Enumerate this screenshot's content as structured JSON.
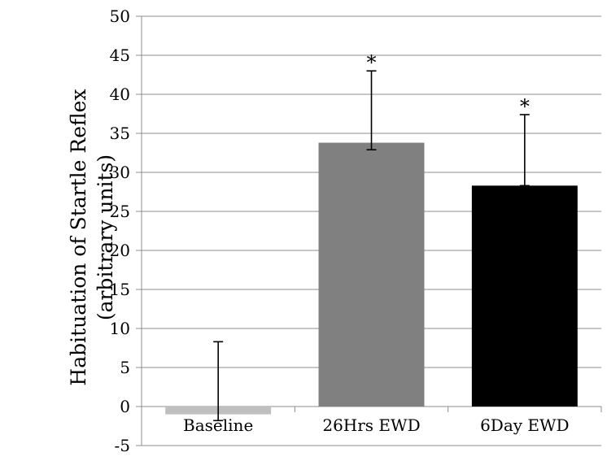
{
  "chart_data": {
    "type": "bar",
    "title": "",
    "ylabel_line1": "Habituation of Startle Reflex",
    "ylabel_line2": "(arbitrary units)",
    "xlabel": "",
    "categories": [
      "Baseline",
      "26Hrs EWD",
      "6Day EWD"
    ],
    "values": [
      -1.0,
      33.8,
      28.3
    ],
    "error_up": [
      9.3,
      9.2,
      9.1
    ],
    "error_down": [
      0.8,
      0.9,
      0.0
    ],
    "significance": [
      "",
      "*",
      "*"
    ],
    "bar_colors": [
      "#bfbfbf",
      "#808080",
      "#000000"
    ],
    "ylim": [
      -5,
      50
    ],
    "yticks": [
      -5,
      0,
      5,
      10,
      15,
      20,
      25,
      30,
      35,
      40,
      45,
      50
    ],
    "grid": true,
    "legend": "none"
  }
}
